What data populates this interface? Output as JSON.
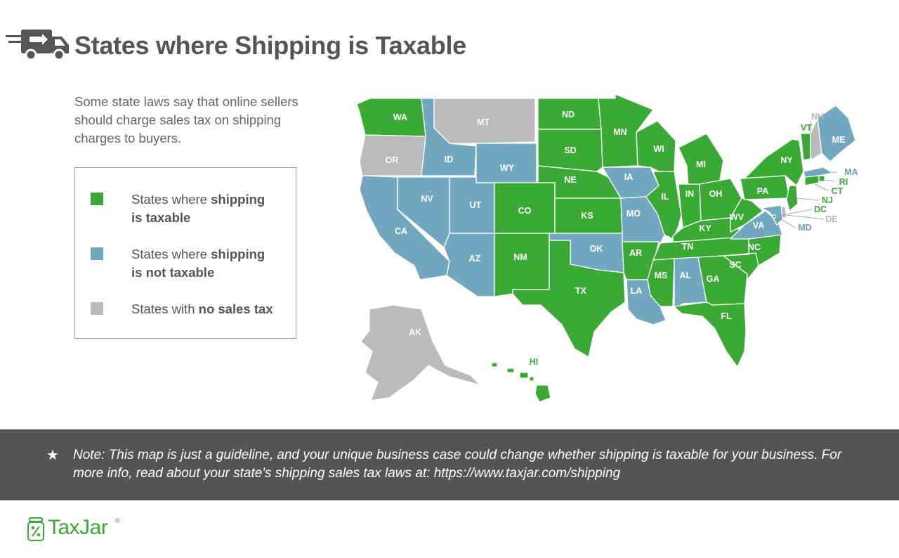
{
  "header": {
    "title": "States where Shipping is Taxable",
    "icon": "delivery-truck-icon"
  },
  "intro": "Some state laws say that online sellers should charge sales tax on shipping charges to buyers.",
  "colors": {
    "taxable": "#3aaa35",
    "not_taxable": "#72a8bf",
    "no_sales_tax": "#bbbbbb",
    "text": "#555555",
    "band": "#545456"
  },
  "legend": [
    {
      "key": "taxable",
      "text_before": "States where ",
      "bold1": "shipping",
      "bold2": "is taxable"
    },
    {
      "key": "not_taxable",
      "text_before": "States where ",
      "bold1": "shipping",
      "bold2": "is not taxable"
    },
    {
      "key": "no_sales_tax",
      "text_before": "States with ",
      "bold1": "no sales tax",
      "bold2": ""
    }
  ],
  "states": [
    {
      "abbr": "WA",
      "status": "taxable"
    },
    {
      "abbr": "OR",
      "status": "no_sales_tax"
    },
    {
      "abbr": "CA",
      "status": "not_taxable"
    },
    {
      "abbr": "NV",
      "status": "not_taxable"
    },
    {
      "abbr": "ID",
      "status": "not_taxable"
    },
    {
      "abbr": "MT",
      "status": "no_sales_tax"
    },
    {
      "abbr": "WY",
      "status": "not_taxable"
    },
    {
      "abbr": "UT",
      "status": "not_taxable"
    },
    {
      "abbr": "AZ",
      "status": "not_taxable"
    },
    {
      "abbr": "CO",
      "status": "taxable"
    },
    {
      "abbr": "NM",
      "status": "taxable"
    },
    {
      "abbr": "ND",
      "status": "taxable"
    },
    {
      "abbr": "SD",
      "status": "taxable"
    },
    {
      "abbr": "NE",
      "status": "taxable"
    },
    {
      "abbr": "KS",
      "status": "taxable"
    },
    {
      "abbr": "OK",
      "status": "not_taxable"
    },
    {
      "abbr": "TX",
      "status": "taxable"
    },
    {
      "abbr": "MN",
      "status": "taxable"
    },
    {
      "abbr": "IA",
      "status": "not_taxable"
    },
    {
      "abbr": "MO",
      "status": "not_taxable"
    },
    {
      "abbr": "AR",
      "status": "taxable"
    },
    {
      "abbr": "LA",
      "status": "not_taxable"
    },
    {
      "abbr": "WI",
      "status": "taxable"
    },
    {
      "abbr": "IL",
      "status": "taxable"
    },
    {
      "abbr": "MI",
      "status": "taxable"
    },
    {
      "abbr": "IN",
      "status": "taxable"
    },
    {
      "abbr": "OH",
      "status": "taxable"
    },
    {
      "abbr": "KY",
      "status": "taxable"
    },
    {
      "abbr": "TN",
      "status": "taxable"
    },
    {
      "abbr": "MS",
      "status": "taxable"
    },
    {
      "abbr": "AL",
      "status": "not_taxable"
    },
    {
      "abbr": "GA",
      "status": "taxable"
    },
    {
      "abbr": "FL",
      "status": "taxable"
    },
    {
      "abbr": "SC",
      "status": "taxable"
    },
    {
      "abbr": "NC",
      "status": "taxable"
    },
    {
      "abbr": "VA",
      "status": "not_taxable"
    },
    {
      "abbr": "WV",
      "status": "taxable"
    },
    {
      "abbr": "PA",
      "status": "taxable"
    },
    {
      "abbr": "NY",
      "status": "taxable"
    },
    {
      "abbr": "VT",
      "status": "taxable"
    },
    {
      "abbr": "NH",
      "status": "no_sales_tax"
    },
    {
      "abbr": "ME",
      "status": "not_taxable"
    },
    {
      "abbr": "MA",
      "status": "not_taxable"
    },
    {
      "abbr": "RI",
      "status": "taxable"
    },
    {
      "abbr": "CT",
      "status": "taxable"
    },
    {
      "abbr": "NJ",
      "status": "taxable"
    },
    {
      "abbr": "DE",
      "status": "no_sales_tax"
    },
    {
      "abbr": "MD",
      "status": "not_taxable"
    },
    {
      "abbr": "DC",
      "status": "taxable"
    },
    {
      "abbr": "AK",
      "status": "no_sales_tax"
    },
    {
      "abbr": "HI",
      "status": "taxable"
    }
  ],
  "note": {
    "icon": "star-icon",
    "text": "Note: This map is just a guideline, and your unique business case could change whether shipping is taxable for your business. For more info, read about your state's shipping sales tax laws at: https://www.taxjar.com/shipping"
  },
  "logo": {
    "text": "TaxJar",
    "reg": "®",
    "icon": "jar-icon"
  }
}
